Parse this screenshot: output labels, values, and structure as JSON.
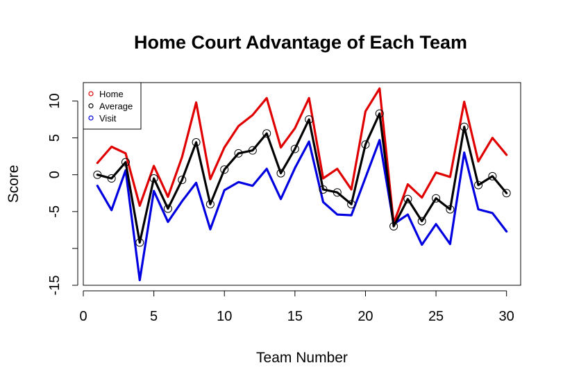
{
  "chart_data": {
    "type": "line",
    "title": "Home Court Advantage of Each Team",
    "xlabel": "Team Number",
    "ylabel": "Score",
    "xlim": [
      0,
      31
    ],
    "ylim": [
      -15,
      12.5
    ],
    "xticks": [
      0,
      5,
      10,
      15,
      20,
      25,
      30
    ],
    "yticks": [
      -15,
      -10,
      -5,
      0,
      5,
      10
    ],
    "ytick_labels": [
      "-15",
      "",
      "-5",
      "0",
      "5",
      "10"
    ],
    "grid": false,
    "legend_position": "top-left",
    "x": [
      1,
      2,
      3,
      4,
      5,
      6,
      7,
      8,
      9,
      10,
      11,
      12,
      13,
      14,
      15,
      16,
      17,
      18,
      19,
      20,
      21,
      22,
      23,
      24,
      25,
      26,
      27,
      28,
      29,
      30
    ],
    "series": [
      {
        "name": "Home",
        "color": "#e00000",
        "values": [
          1.6,
          3.8,
          2.9,
          -4.2,
          1.2,
          -3.0,
          2.4,
          9.8,
          -0.6,
          3.7,
          6.6,
          8.1,
          10.4,
          3.7,
          6.3,
          10.4,
          -0.5,
          0.8,
          -2.0,
          8.6,
          11.7,
          -6.6,
          -1.3,
          -3.1,
          0.3,
          -0.3,
          9.9,
          1.8,
          5.0,
          2.7
        ]
      },
      {
        "name": "Average",
        "color": "#000000",
        "values": [
          0.0,
          -0.5,
          1.7,
          -9.2,
          -0.5,
          -4.6,
          -0.7,
          4.4,
          -4.0,
          0.7,
          2.9,
          3.3,
          5.6,
          0.2,
          3.5,
          7.5,
          -2.0,
          -2.4,
          -4.0,
          4.1,
          8.3,
          -7.0,
          -3.3,
          -6.3,
          -3.2,
          -4.7,
          6.5,
          -1.4,
          -0.2,
          -2.5
        ]
      },
      {
        "name": "Visit",
        "color": "#0000e0",
        "values": [
          -1.5,
          -4.8,
          0.6,
          -14.3,
          -2.2,
          -6.4,
          -3.6,
          -1.1,
          -7.4,
          -2.1,
          -1.0,
          -1.5,
          0.8,
          -3.3,
          0.9,
          4.5,
          -3.7,
          -5.4,
          -5.5,
          -0.4,
          4.7,
          -6.7,
          -5.4,
          -9.5,
          -6.7,
          -9.4,
          3.0,
          -4.7,
          -5.2,
          -7.7
        ]
      }
    ]
  }
}
